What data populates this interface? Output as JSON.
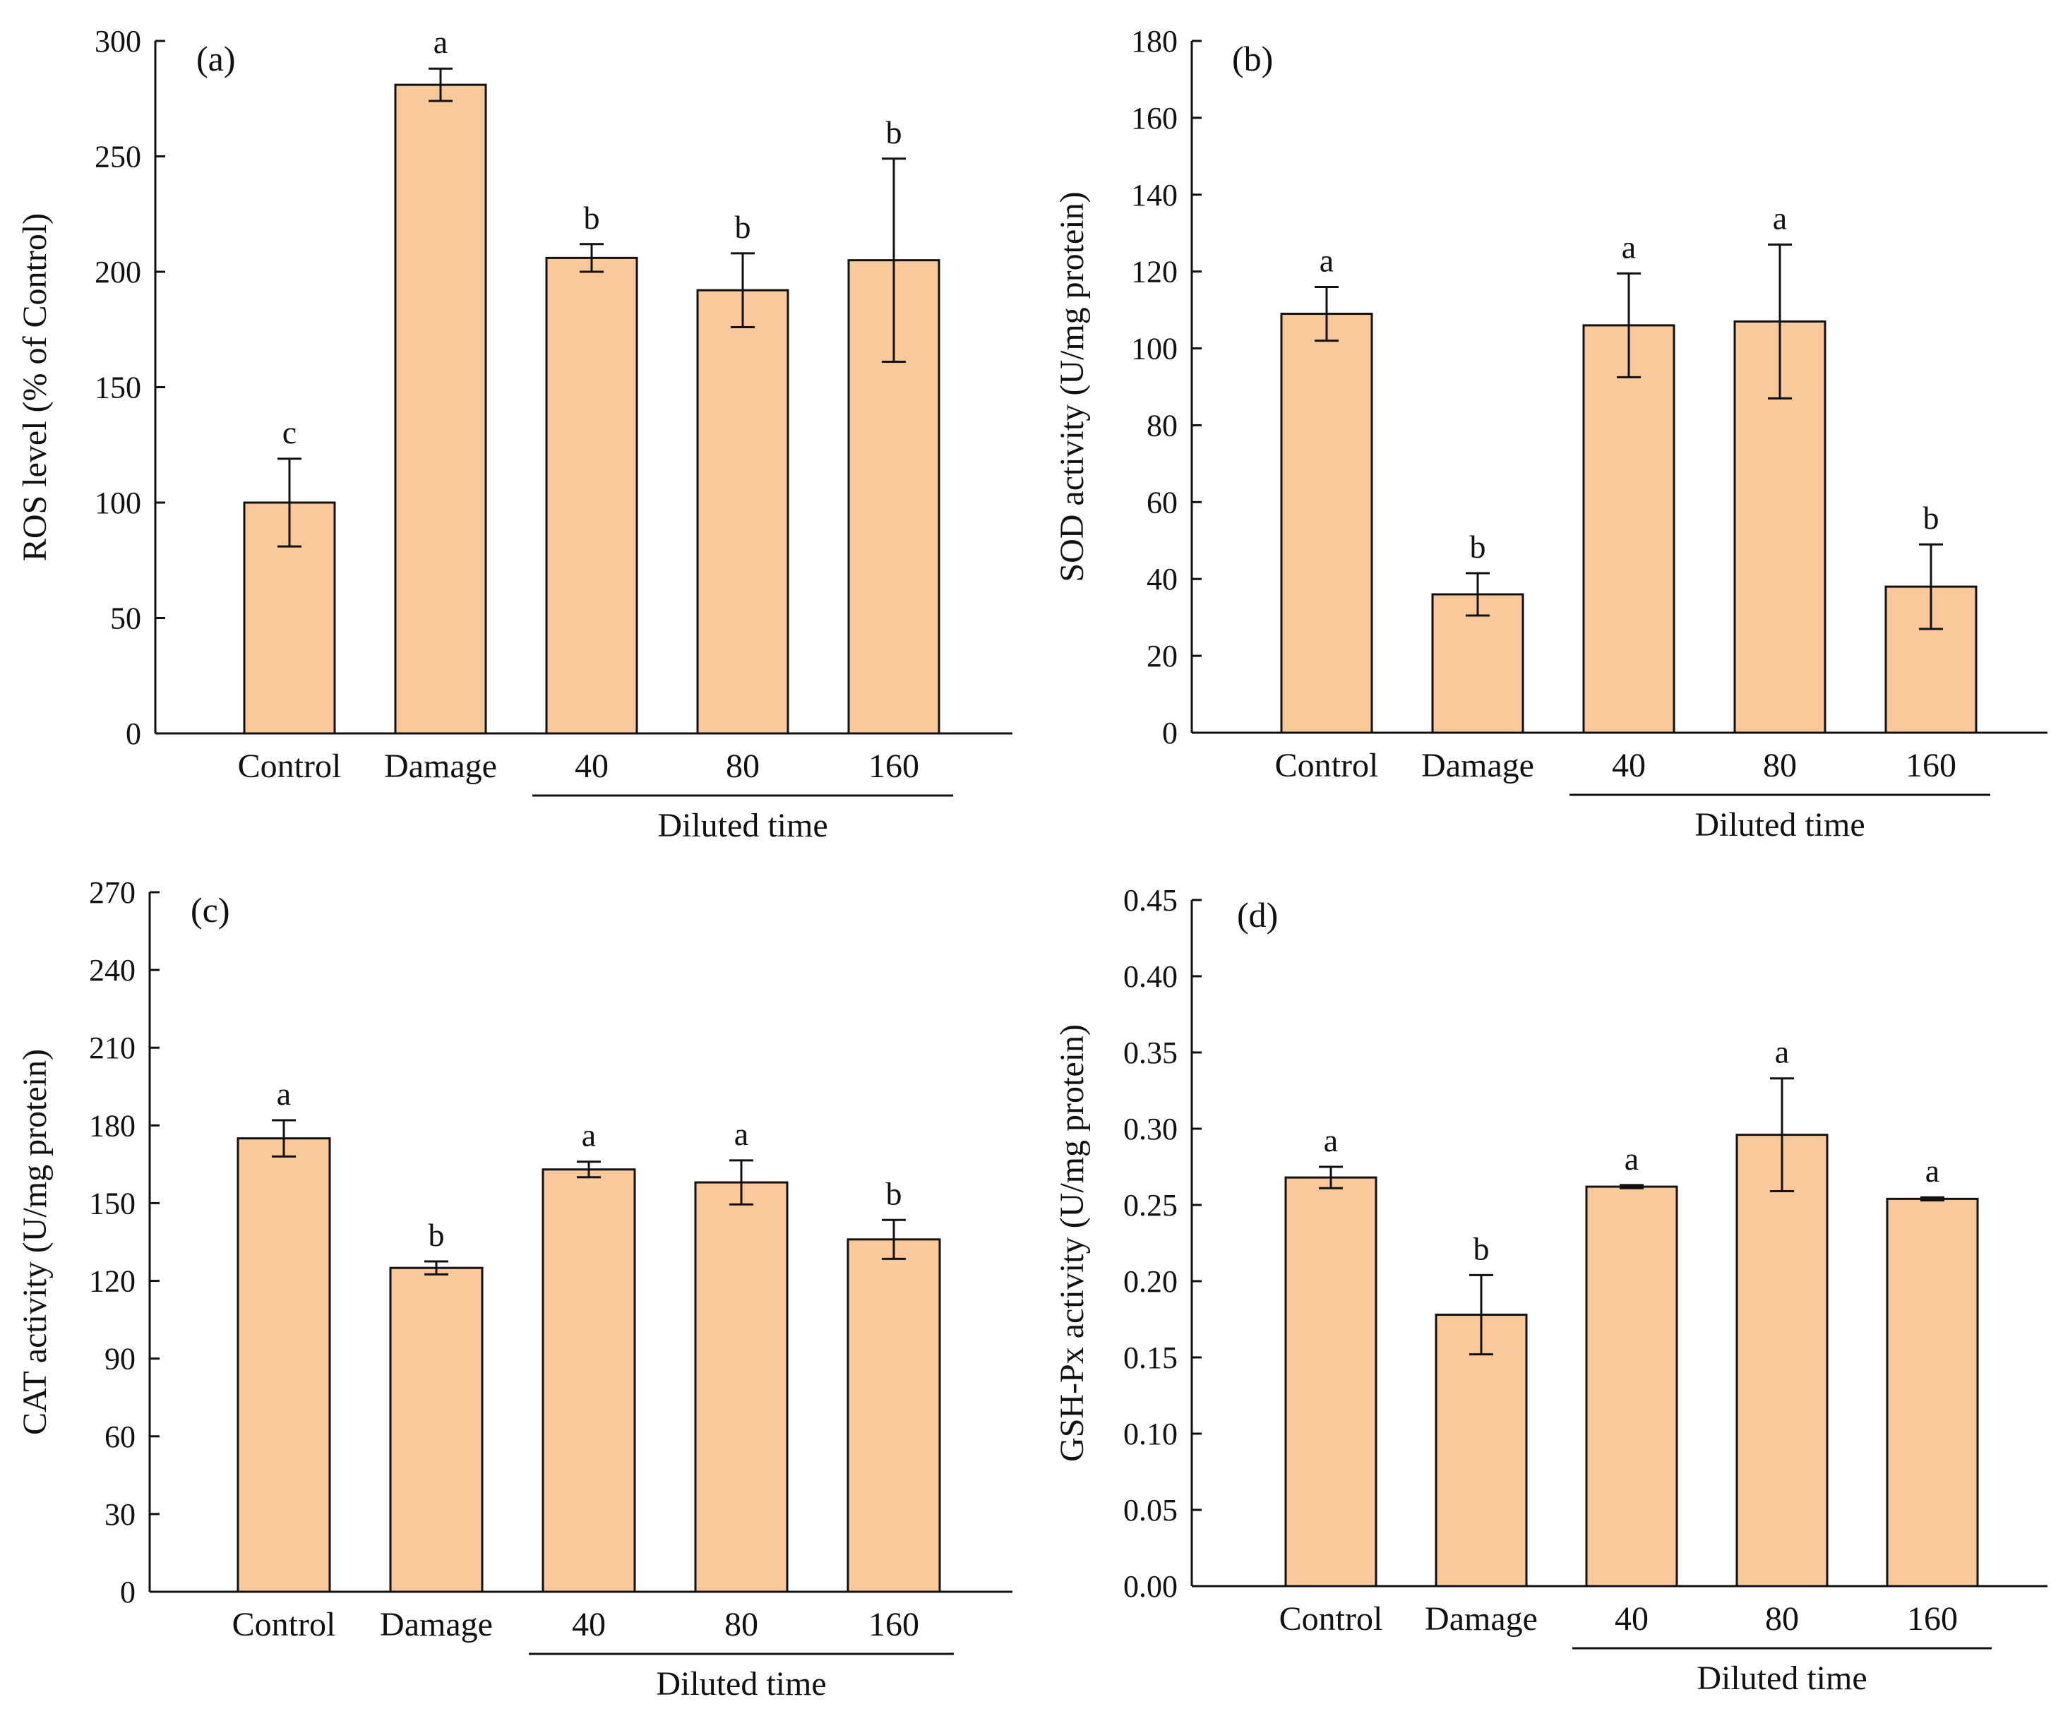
{
  "chart_data": [
    {
      "type": "bar",
      "panel": "(a)",
      "title": "",
      "xlabel": "",
      "ylabel": "ROS level (% of Control)",
      "categories": [
        "Control",
        "Damage",
        "40",
        "80",
        "160"
      ],
      "values": [
        100,
        281,
        206,
        192,
        205
      ],
      "errors": [
        19,
        7,
        6,
        16,
        44
      ],
      "significance": [
        "c",
        "a",
        "b",
        "b",
        "b"
      ],
      "ylim": [
        0,
        300
      ],
      "yticks": [
        "0",
        "50",
        "100",
        "150",
        "200",
        "250",
        "300"
      ],
      "group_label": "Diluted time",
      "bar_color": "#F9C89B",
      "edge_color": "#111111"
    },
    {
      "type": "bar",
      "panel": "(b)",
      "title": "",
      "xlabel": "",
      "ylabel": "SOD activity (U/mg protein)",
      "categories": [
        "Control",
        "Damage",
        "40",
        "80",
        "160"
      ],
      "values": [
        109,
        36,
        106,
        107,
        38
      ],
      "errors": [
        7,
        5.5,
        13.5,
        20,
        11
      ],
      "significance": [
        "a",
        "b",
        "a",
        "a",
        "b"
      ],
      "ylim": [
        0,
        180
      ],
      "yticks": [
        "0",
        "20",
        "40",
        "60",
        "80",
        "100",
        "120",
        "140",
        "160",
        "180"
      ],
      "group_label": "Diluted time",
      "bar_color": "#F9C89B",
      "edge_color": "#111111"
    },
    {
      "type": "bar",
      "panel": "(c)",
      "title": "",
      "xlabel": "",
      "ylabel": "CAT activity (U/mg protein)",
      "categories": [
        "Control",
        "Damage",
        "40",
        "80",
        "160"
      ],
      "values": [
        175,
        125,
        163,
        158,
        136
      ],
      "errors": [
        7,
        2.5,
        3,
        8.5,
        7.5
      ],
      "significance": [
        "a",
        "b",
        "a",
        "a",
        "b"
      ],
      "ylim": [
        0,
        270
      ],
      "yticks": [
        "0",
        "30",
        "60",
        "90",
        "120",
        "150",
        "180",
        "210",
        "240",
        "270"
      ],
      "group_label": "Diluted time",
      "bar_color": "#F9C89B",
      "edge_color": "#111111"
    },
    {
      "type": "bar",
      "panel": "(d)",
      "title": "",
      "xlabel": "",
      "ylabel": "GSH-Px activity (U/mg protein)",
      "categories": [
        "Control",
        "Damage",
        "40",
        "80",
        "160"
      ],
      "values": [
        0.268,
        0.178,
        0.262,
        0.296,
        0.254
      ],
      "errors": [
        0.007,
        0.026,
        0.001,
        0.037,
        0.001
      ],
      "significance": [
        "a",
        "b",
        "a",
        "a",
        "a"
      ],
      "ylim": [
        0,
        0.45
      ],
      "yticks": [
        "0.00",
        "0.05",
        "0.10",
        "0.15",
        "0.20",
        "0.25",
        "0.30",
        "0.35",
        "0.40",
        "0.45"
      ],
      "group_label": "Diluted time",
      "bar_color": "#F9C89B",
      "edge_color": "#111111"
    }
  ]
}
